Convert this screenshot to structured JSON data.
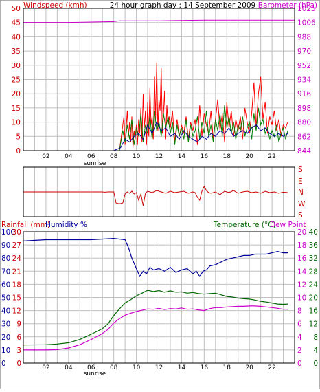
{
  "colors": {
    "windspeed": "#ff0000",
    "gust_green": "#008000",
    "avg_blue": "#000099",
    "barometer": "#cc00cc",
    "direction": "#cc0000",
    "humidity": "#000099",
    "temperature": "#006600",
    "dewpoint": "#cc00cc",
    "grid": "#c0c0c0",
    "frame": "#000000",
    "panel_border": "#b0b0b0"
  },
  "chart_data": [
    {
      "type": "line",
      "title": "24 hour graph day : 14 September 2009",
      "ylabel_left": "Windspeed (kmh)",
      "ylabel_right": "Barometer (hPa)",
      "left_ticks": [
        "0",
        "5",
        "10",
        "15",
        "20",
        "25",
        "30",
        "35",
        "40",
        "45",
        "50"
      ],
      "right_ticks": [
        "844",
        "862",
        "880",
        "898",
        "916",
        "934",
        "952",
        "970",
        "988",
        "1006",
        "1025"
      ],
      "x_ticks": [
        "02",
        "04",
        "06",
        "08",
        "10",
        "12",
        "14",
        "16",
        "18",
        "20",
        "22"
      ],
      "x_sublabel": "sunrise",
      "ylim_left": [
        0,
        50
      ],
      "ylim_right": [
        844,
        1025
      ],
      "series": [
        {
          "key": "barometer",
          "axis": "right",
          "x": [
            0,
            4,
            8,
            8.5,
            12,
            16,
            20,
            24
          ],
          "y": [
            1007,
            1007,
            1008,
            1009,
            1009,
            1010,
            1010,
            1010
          ]
        },
        {
          "key": "windspeed",
          "axis": "left",
          "x": [
            0,
            8.5,
            8.7,
            8.9,
            9.0,
            9.1,
            9.2,
            9.3,
            9.4,
            9.5,
            9.6,
            9.7,
            9.8,
            9.9,
            10.0,
            10.1,
            10.2,
            10.3,
            10.4,
            10.5,
            10.6,
            10.7,
            10.8,
            10.9,
            11.0,
            11.1,
            11.2,
            11.3,
            11.4,
            11.5,
            11.6,
            11.7,
            11.8,
            11.9,
            12.0,
            12.1,
            12.2,
            12.3,
            12.4,
            12.5,
            12.6,
            12.7,
            12.8,
            12.9,
            13.0,
            13.2,
            13.4,
            13.6,
            13.8,
            14.0,
            14.2,
            14.4,
            14.6,
            14.8,
            15.0,
            15.2,
            15.4,
            15.6,
            15.8,
            16.0,
            16.2,
            16.4,
            16.6,
            16.8,
            17.0,
            17.2,
            17.4,
            17.6,
            17.8,
            18.0,
            18.2,
            18.4,
            18.6,
            18.8,
            19.0,
            19.2,
            19.4,
            19.6,
            19.8,
            20.0,
            20.2,
            20.4,
            20.6,
            20.8,
            21.0,
            21.2,
            21.4,
            21.6,
            21.8,
            22.0,
            22.2,
            22.4,
            22.6,
            22.8,
            23.0,
            23.2,
            23.4
          ],
          "y": [
            0,
            0,
            6,
            12,
            2,
            8,
            14,
            5,
            10,
            3,
            12,
            1,
            7,
            4,
            9,
            2,
            11,
            6,
            15,
            3,
            20,
            8,
            14,
            2,
            17,
            5,
            22,
            9,
            12,
            4,
            26,
            11,
            31,
            7,
            18,
            14,
            29,
            6,
            13,
            21,
            4,
            16,
            9,
            12,
            8,
            14,
            3,
            11,
            5,
            9,
            6,
            12,
            4,
            10,
            7,
            11,
            2,
            16,
            5,
            13,
            9,
            6,
            14,
            4,
            11,
            18,
            7,
            13,
            3,
            17,
            8,
            14,
            5,
            11,
            7,
            12,
            4,
            15,
            10,
            6,
            13,
            24,
            8,
            20,
            26,
            11,
            17,
            6,
            12,
            9,
            14,
            7,
            11,
            5,
            9,
            8,
            10
          ]
        },
        {
          "key": "gust_green",
          "axis": "left",
          "x": [
            0,
            8.0,
            8.5,
            8.8,
            9.0,
            9.2,
            9.4,
            9.6,
            9.8,
            10.0,
            10.2,
            10.4,
            10.6,
            10.8,
            11.0,
            11.2,
            11.4,
            11.6,
            11.8,
            12.0,
            12.2,
            12.4,
            12.6,
            12.8,
            13.0,
            13.2,
            13.4,
            13.6,
            13.8,
            14.0,
            14.2,
            14.4,
            14.6,
            14.8,
            15.0,
            15.2,
            15.4,
            15.6,
            15.8,
            16.0,
            16.2,
            16.4,
            16.6,
            16.8,
            17.0,
            17.2,
            17.4,
            17.6,
            17.8,
            18.0,
            18.2,
            18.4,
            18.6,
            18.8,
            19.0,
            19.2,
            19.4,
            19.6,
            19.8,
            20.0,
            20.2,
            20.4,
            20.6,
            20.8,
            21.0,
            21.2,
            21.4,
            21.6,
            21.8,
            22.0,
            22.2,
            22.4,
            22.6,
            22.8,
            23.0,
            23.2,
            23.4
          ],
          "y": [
            0,
            0,
            0,
            7,
            3,
            9,
            4,
            11,
            2,
            8,
            5,
            13,
            3,
            9,
            6,
            12,
            4,
            14,
            7,
            10,
            5,
            13,
            8,
            12,
            6,
            10,
            2,
            9,
            5,
            8,
            4,
            11,
            3,
            9,
            5,
            7,
            12,
            4,
            10,
            6,
            14,
            5,
            9,
            3,
            11,
            7,
            13,
            5,
            16,
            8,
            12,
            6,
            10,
            4,
            9,
            7,
            12,
            5,
            8,
            10,
            4,
            13,
            7,
            15,
            9,
            11,
            6,
            8,
            4,
            7,
            5,
            9,
            3,
            6,
            8,
            4,
            7
          ]
        },
        {
          "key": "avg_blue",
          "axis": "left",
          "x": [
            0,
            8.0,
            8.6,
            9.0,
            9.4,
            9.8,
            10.2,
            10.6,
            11.0,
            11.4,
            11.8,
            12.2,
            12.6,
            13.0,
            13.4,
            13.8,
            14.2,
            14.6,
            15.0,
            15.4,
            15.8,
            16.2,
            16.6,
            17.0,
            17.4,
            17.8,
            18.2,
            18.6,
            19.0,
            19.4,
            19.8,
            20.2,
            20.6,
            21.0,
            21.4,
            21.8,
            22.2,
            22.6,
            23.0,
            23.4
          ],
          "y": [
            0,
            0,
            1,
            4,
            3,
            5,
            6,
            4,
            9,
            6,
            10,
            7,
            8,
            5,
            6,
            4,
            7,
            5,
            4,
            3,
            5,
            4,
            6,
            5,
            7,
            6,
            8,
            5,
            6,
            7,
            6,
            8,
            9,
            7,
            8,
            6,
            5,
            6,
            5,
            6
          ]
        }
      ]
    },
    {
      "type": "line",
      "title": "",
      "right_labels": [
        "S",
        "E",
        "N",
        "W",
        "S"
      ],
      "ylim": [
        0,
        360
      ],
      "series": [
        {
          "key": "direction",
          "x": [
            0,
            7.0,
            7.2,
            7.5,
            8.0,
            8.2,
            8.4,
            8.6,
            8.8,
            9.0,
            9.2,
            9.4,
            9.6,
            9.8,
            10.0,
            10.2,
            10.4,
            10.6,
            10.8,
            11.0,
            11.4,
            11.8,
            12.2,
            12.6,
            13.0,
            13.4,
            13.8,
            14.2,
            14.6,
            15.0,
            15.2,
            15.4,
            15.6,
            15.8,
            16.0,
            16.2,
            16.4,
            16.6,
            17.0,
            17.4,
            17.8,
            18.2,
            18.6,
            19.0,
            19.4,
            19.8,
            20.2,
            20.6,
            21.0,
            21.4,
            21.8,
            22.2,
            22.6,
            23.0,
            23.4
          ],
          "y": [
            180,
            180,
            178,
            180,
            180,
            100,
            95,
            95,
            100,
            165,
            180,
            170,
            185,
            165,
            175,
            120,
            165,
            80,
            170,
            185,
            175,
            190,
            180,
            170,
            185,
            175,
            180,
            185,
            170,
            180,
            175,
            140,
            120,
            185,
            220,
            190,
            175,
            170,
            180,
            160,
            185,
            175,
            190,
            170,
            180,
            185,
            175,
            180,
            170,
            185,
            175,
            180,
            170,
            178,
            175
          ]
        }
      ]
    },
    {
      "type": "line",
      "title": "",
      "label_rainfall": "Rainfall (mm)",
      "label_humidity": "Humidity %",
      "label_temperature": "Temperature (°C)",
      "label_dewpoint": "Dew Point",
      "humidity_ticks": [
        "0",
        "10",
        "20",
        "30",
        "40",
        "50",
        "60",
        "70",
        "80",
        "90",
        "100"
      ],
      "rainfall_ticks": [
        "0",
        "3",
        "6",
        "9",
        "12",
        "15",
        "18",
        "21",
        "24",
        "27",
        "30"
      ],
      "temp_ticks_right": [
        "0",
        "4",
        "8",
        "12",
        "16",
        "20",
        "24",
        "28",
        "32",
        "36",
        "40"
      ],
      "dew_ticks_right": [
        "0",
        "2",
        "4",
        "6",
        "8",
        "10",
        "12",
        "14",
        "16",
        "18",
        "20"
      ],
      "x_ticks": [
        "02",
        "04",
        "06",
        "08",
        "10",
        "12",
        "14",
        "16",
        "18",
        "20",
        "22"
      ],
      "x_sublabel": "sunrise",
      "ylim_temp": [
        0,
        40
      ],
      "ylim_humidity": [
        0,
        100
      ],
      "series": [
        {
          "key": "humidity",
          "axis": "humidity",
          "x": [
            0,
            2,
            4,
            6,
            8,
            9,
            9.3,
            9.6,
            10.0,
            10.3,
            10.6,
            10.9,
            11.2,
            11.5,
            12.0,
            12.5,
            13.0,
            13.5,
            14.0,
            14.5,
            15.0,
            15.3,
            15.6,
            15.9,
            16.2,
            16.5,
            17.0,
            17.5,
            18.0,
            18.5,
            19.0,
            19.5,
            20.0,
            20.5,
            21.0,
            21.5,
            22.0,
            22.5,
            23.0,
            23.4
          ],
          "y": [
            93,
            94,
            94,
            94,
            95,
            94,
            88,
            80,
            72,
            66,
            70,
            68,
            73,
            71,
            72,
            70,
            73,
            69,
            71,
            72,
            68,
            70,
            66,
            70,
            71,
            74,
            75,
            77,
            79,
            80,
            81,
            82,
            82,
            83,
            83,
            83,
            84,
            85,
            84,
            84
          ]
        },
        {
          "key": "temperature",
          "axis": "temp",
          "x": [
            0,
            2,
            3,
            4,
            5,
            6,
            7,
            7.5,
            8,
            8.5,
            9,
            9.5,
            10,
            10.5,
            11,
            11.5,
            12,
            12.5,
            13,
            13.5,
            14,
            14.5,
            15,
            15.5,
            16,
            16.5,
            17,
            17.5,
            18,
            18.5,
            19,
            19.5,
            20,
            20.5,
            21,
            21.5,
            22,
            22.5,
            23,
            23.4
          ],
          "y": [
            5.5,
            5.6,
            5.8,
            6.2,
            7.2,
            8.8,
            10.5,
            12.0,
            14.5,
            16.5,
            18.3,
            19.3,
            20.5,
            21.3,
            22.2,
            21.8,
            22.1,
            21.6,
            22.0,
            21.6,
            21.7,
            21.3,
            21.5,
            21.2,
            21.0,
            21.2,
            21.3,
            20.8,
            20.3,
            20.1,
            19.8,
            19.6,
            19.5,
            19.2,
            18.8,
            18.6,
            18.3,
            18.0,
            17.9,
            18.0
          ]
        },
        {
          "key": "dewpoint",
          "axis": "temp",
          "x": [
            0,
            2,
            3,
            4,
            5,
            6,
            7,
            7.5,
            8,
            8.5,
            9,
            9.5,
            10,
            10.5,
            11,
            11.5,
            12,
            12.5,
            13,
            13.5,
            14,
            14.5,
            15,
            15.5,
            16,
            16.5,
            17,
            17.5,
            18,
            18.5,
            19,
            19.5,
            20,
            20.5,
            21,
            21.5,
            22,
            22.5,
            23,
            23.4
          ],
          "y": [
            4.0,
            4.0,
            4.1,
            4.6,
            5.6,
            7.2,
            9.0,
            10.3,
            12.2,
            13.5,
            14.6,
            15.2,
            15.7,
            16.1,
            16.5,
            16.4,
            16.7,
            16.3,
            16.6,
            16.5,
            16.8,
            16.4,
            16.5,
            16.2,
            16.0,
            16.6,
            16.9,
            16.9,
            17.1,
            17.2,
            17.3,
            17.3,
            17.4,
            17.4,
            17.3,
            17.1,
            16.9,
            16.7,
            16.4,
            16.4
          ]
        }
      ]
    }
  ]
}
